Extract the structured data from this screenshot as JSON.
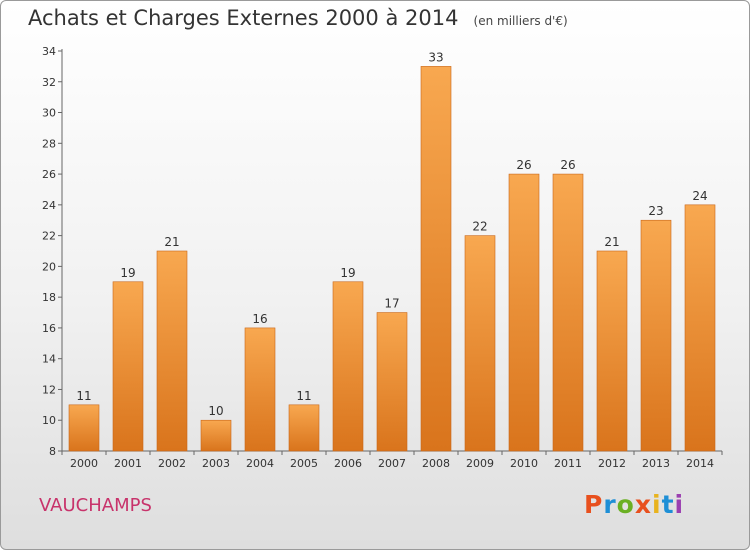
{
  "chart_data": {
    "type": "bar",
    "title": "Achats et Charges Externes 2000 à 2014",
    "subtitle": "(en milliers d'€)",
    "categories": [
      "2000",
      "2001",
      "2002",
      "2003",
      "2004",
      "2005",
      "2006",
      "2007",
      "2008",
      "2009",
      "2010",
      "2011",
      "2012",
      "2013",
      "2014"
    ],
    "values": [
      11,
      19,
      21,
      10,
      16,
      11,
      19,
      17,
      33,
      22,
      26,
      26,
      21,
      23,
      24
    ],
    "ylim": [
      8,
      34
    ],
    "yticks": [
      8,
      10,
      12,
      14,
      16,
      18,
      20,
      22,
      24,
      26,
      28,
      30,
      32,
      34
    ],
    "grid": false,
    "bar_color": "#f39a3c"
  },
  "footer": {
    "town": "VAUCHAMPS",
    "brand": "Proxiti",
    "brand_colors": [
      "#e8501e",
      "#1e8fd6",
      "#6ab023",
      "#e8501e",
      "#e8b31e",
      "#1e8fd6",
      "#9b3fb0"
    ]
  }
}
